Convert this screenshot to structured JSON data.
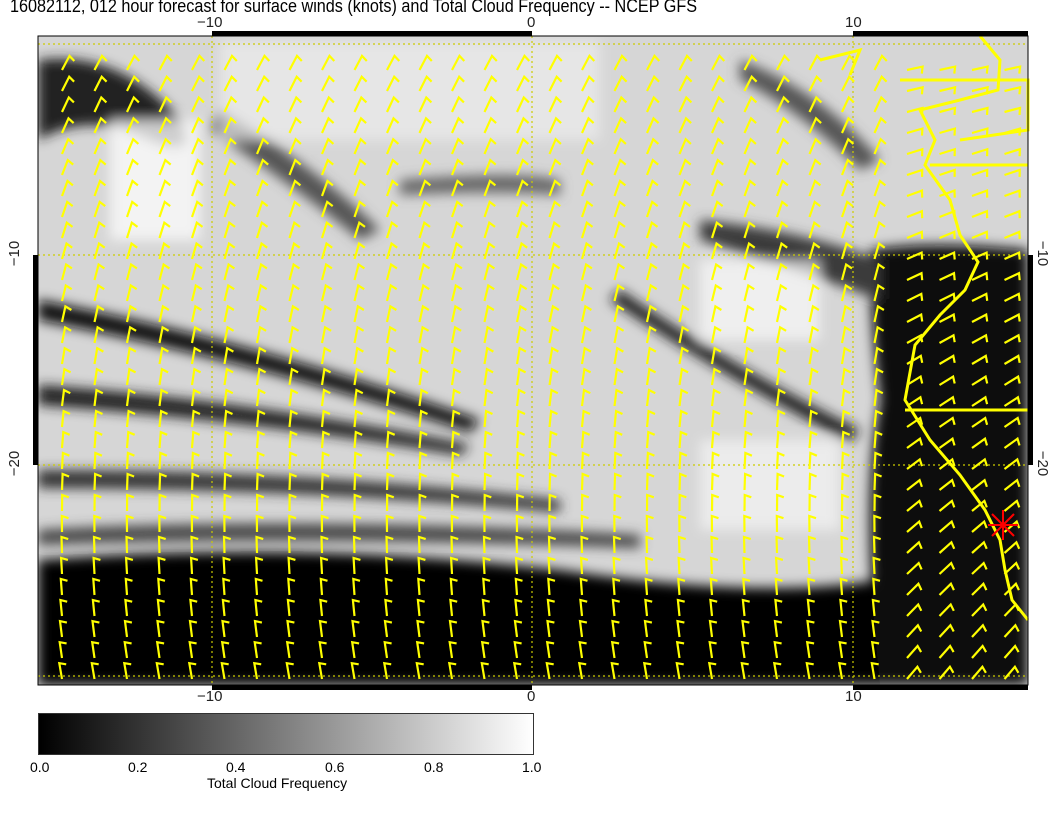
{
  "title": "16082112, 012 hour forecast for surface winds (knots) and Total Cloud Frequency -- NCEP GFS",
  "x_ticks": [
    "−10",
    "0",
    "10"
  ],
  "y_ticks": [
    "−10",
    "−20"
  ],
  "colorbar": {
    "label": "Total Cloud Frequency",
    "ticks": [
      "0.0",
      "0.2",
      "0.4",
      "0.6",
      "0.8",
      "1.0"
    ],
    "range": [
      0.0,
      1.0
    ],
    "colormap": "black-to-white grayscale"
  },
  "colors": {
    "wind_barbs": "#ffff00",
    "coastline": "#ffff00",
    "marker": "#ff0000",
    "gridlines": "#cccc00"
  },
  "marker": "red-star"
}
